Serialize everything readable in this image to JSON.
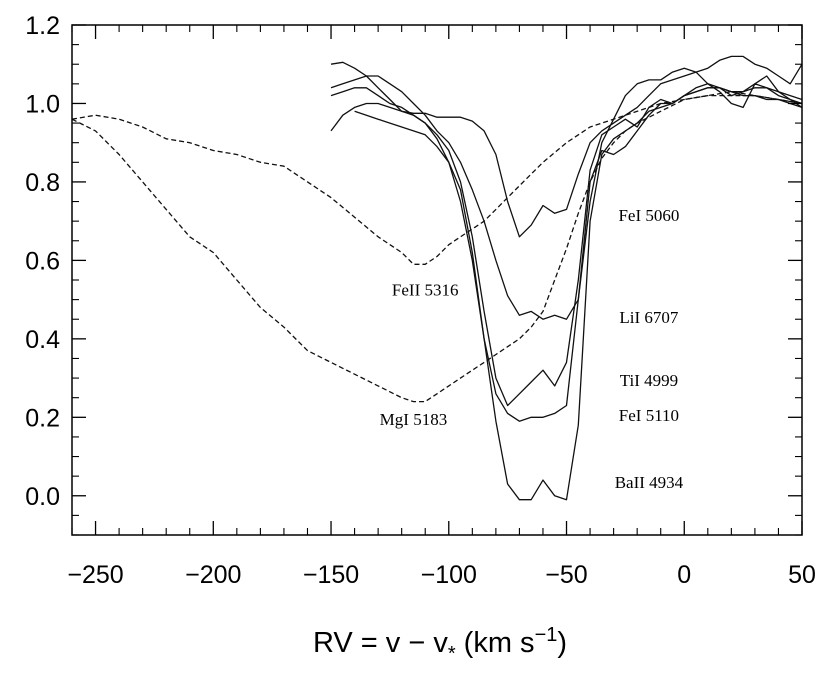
{
  "chart_data": {
    "type": "line",
    "title": "",
    "xlabel": {
      "base": "RV = v − v",
      "sub": "*",
      "units_open": " (km s",
      "sup": "−1",
      "units_close": ")"
    },
    "ylabel": "",
    "xlim": [
      -260,
      50
    ],
    "ylim": [
      -0.1,
      1.2
    ],
    "xticks": [
      -250,
      -200,
      -150,
      -100,
      -50,
      0,
      50
    ],
    "xtick_labels": [
      "−250",
      "−200",
      "−150",
      "−100",
      "−50",
      "0",
      "50"
    ],
    "yticks": [
      0.0,
      0.2,
      0.4,
      0.6,
      0.8,
      1.0,
      1.2
    ],
    "ytick_labels": [
      "0.0",
      "0.2",
      "0.4",
      "0.6",
      "0.8",
      "1.0",
      "1.2"
    ],
    "x_minor_step": 10,
    "y_minor_step": 0.05,
    "grid": false,
    "series": [
      {
        "name": "FeI 5060",
        "style": "solid",
        "label": {
          "text": "FeI 5060",
          "x": -15,
          "y": 0.7
        },
        "x": [
          -150,
          -145,
          -140,
          -135,
          -130,
          -125,
          -120,
          -115,
          -110,
          -105,
          -100,
          -95,
          -90,
          -85,
          -80,
          -75,
          -70,
          -65,
          -60,
          -55,
          -50,
          -45,
          -40,
          -35,
          -30,
          -25,
          -20,
          -15,
          -10,
          -5,
          0,
          5,
          10,
          15,
          20,
          25,
          30,
          35,
          40,
          45,
          50
        ],
        "values": [
          1.1,
          1.105,
          1.09,
          1.07,
          1.04,
          1.01,
          0.98,
          0.975,
          0.975,
          0.965,
          0.965,
          0.965,
          0.955,
          0.93,
          0.87,
          0.75,
          0.66,
          0.69,
          0.74,
          0.72,
          0.73,
          0.82,
          0.9,
          0.93,
          0.95,
          0.97,
          0.99,
          1.02,
          1.05,
          1.06,
          1.07,
          1.08,
          1.09,
          1.11,
          1.12,
          1.12,
          1.1,
          1.09,
          1.07,
          1.05,
          1.1
        ]
      },
      {
        "name": "LiI 6707",
        "style": "solid",
        "label": {
          "text": "LiI 6707",
          "x": -15,
          "y": 0.44
        },
        "x": [
          -150,
          -145,
          -140,
          -135,
          -130,
          -125,
          -120,
          -115,
          -110,
          -105,
          -100,
          -95,
          -90,
          -85,
          -80,
          -75,
          -70,
          -65,
          -60,
          -55,
          -50,
          -45,
          -40,
          -35,
          -30,
          -25,
          -20,
          -15,
          -10,
          -5,
          0,
          5,
          10,
          15,
          20,
          25,
          30,
          35,
          40,
          45,
          50
        ],
        "values": [
          1.04,
          1.05,
          1.06,
          1.07,
          1.07,
          1.05,
          1.03,
          1.0,
          0.97,
          0.93,
          0.9,
          0.85,
          0.78,
          0.7,
          0.6,
          0.51,
          0.46,
          0.47,
          0.45,
          0.46,
          0.45,
          0.5,
          0.75,
          0.9,
          0.96,
          1.02,
          1.05,
          1.06,
          1.06,
          1.08,
          1.09,
          1.08,
          1.05,
          1.03,
          1.0,
          0.99,
          1.05,
          1.07,
          1.03,
          1.01,
          0.99
        ]
      },
      {
        "name": "TiI 4999",
        "style": "solid",
        "label": {
          "text": "TiI 4999",
          "x": -15,
          "y": 0.28
        },
        "x": [
          -150,
          -145,
          -140,
          -135,
          -130,
          -125,
          -120,
          -115,
          -110,
          -105,
          -100,
          -95,
          -90,
          -85,
          -80,
          -75,
          -70,
          -65,
          -60,
          -55,
          -50,
          -45,
          -40,
          -35,
          -30,
          -25,
          -20,
          -15,
          -10,
          -5,
          0,
          5,
          10,
          15,
          20,
          25,
          30,
          35,
          40,
          45,
          50
        ],
        "values": [
          0.93,
          0.97,
          0.99,
          1.0,
          1.0,
          0.99,
          0.98,
          0.97,
          0.95,
          0.92,
          0.88,
          0.8,
          0.66,
          0.47,
          0.3,
          0.23,
          0.26,
          0.29,
          0.32,
          0.28,
          0.34,
          0.55,
          0.83,
          0.92,
          0.94,
          0.96,
          0.94,
          0.99,
          1.01,
          1.0,
          1.02,
          1.03,
          1.04,
          1.04,
          1.03,
          1.03,
          1.04,
          1.04,
          1.02,
          1.01,
          1.0
        ]
      },
      {
        "name": "FeI 5110",
        "style": "solid",
        "label": {
          "text": "FeI 5110",
          "x": -15,
          "y": 0.19
        },
        "x": [
          -150,
          -145,
          -140,
          -135,
          -130,
          -125,
          -120,
          -115,
          -110,
          -105,
          -100,
          -95,
          -90,
          -85,
          -80,
          -75,
          -70,
          -65,
          -60,
          -55,
          -50,
          -45,
          -40,
          -35,
          -30,
          -25,
          -20,
          -15,
          -10,
          -5,
          0,
          5,
          10,
          15,
          20,
          25,
          30,
          35,
          40,
          45,
          50
        ],
        "values": [
          1.02,
          1.03,
          1.04,
          1.04,
          1.02,
          1.0,
          0.99,
          0.97,
          0.95,
          0.91,
          0.85,
          0.75,
          0.6,
          0.4,
          0.26,
          0.21,
          0.19,
          0.2,
          0.2,
          0.21,
          0.23,
          0.5,
          0.8,
          0.88,
          0.87,
          0.89,
          0.93,
          0.97,
          1.0,
          1.0,
          1.02,
          1.04,
          1.05,
          1.04,
          1.02,
          1.03,
          1.05,
          1.04,
          1.03,
          1.02,
          1.01
        ]
      },
      {
        "name": "BaII 4934",
        "style": "solid",
        "label": {
          "text": "BaII 4934",
          "x": -15,
          "y": 0.02
        },
        "x": [
          -140,
          -135,
          -130,
          -125,
          -120,
          -115,
          -110,
          -105,
          -100,
          -95,
          -90,
          -85,
          -80,
          -75,
          -70,
          -65,
          -60,
          -55,
          -50,
          -45,
          -40,
          -35,
          -30,
          -25,
          -20,
          -15,
          -10,
          -5,
          0,
          5,
          10,
          15,
          20,
          25,
          30,
          35,
          40,
          45,
          50
        ],
        "values": [
          0.98,
          0.97,
          0.96,
          0.95,
          0.94,
          0.93,
          0.92,
          0.89,
          0.85,
          0.78,
          0.62,
          0.4,
          0.19,
          0.03,
          -0.01,
          -0.01,
          0.04,
          0.0,
          -0.01,
          0.18,
          0.7,
          0.87,
          0.91,
          0.93,
          0.95,
          0.98,
          0.99,
          1.0,
          1.02,
          1.03,
          1.04,
          1.04,
          1.03,
          1.02,
          1.02,
          1.01,
          1.01,
          1.0,
          0.99
        ]
      },
      {
        "name": "FeII 5316",
        "style": "dashed",
        "label": {
          "text": "FeII 5316",
          "x": -110,
          "y": 0.51
        },
        "x": [
          -260,
          -250,
          -240,
          -230,
          -220,
          -210,
          -200,
          -190,
          -180,
          -170,
          -160,
          -150,
          -140,
          -130,
          -120,
          -115,
          -110,
          -105,
          -100,
          -95,
          -90,
          -85,
          -80,
          -75,
          -70,
          -60,
          -50,
          -40,
          -30,
          -20,
          -10,
          0,
          10,
          20,
          30,
          40,
          50
        ],
        "values": [
          0.96,
          0.97,
          0.96,
          0.94,
          0.91,
          0.9,
          0.88,
          0.87,
          0.85,
          0.84,
          0.8,
          0.76,
          0.71,
          0.66,
          0.62,
          0.59,
          0.59,
          0.61,
          0.64,
          0.66,
          0.68,
          0.7,
          0.73,
          0.76,
          0.79,
          0.85,
          0.9,
          0.94,
          0.96,
          0.98,
          1.0,
          1.01,
          1.02,
          1.02,
          1.02,
          1.01,
          1.0
        ]
      },
      {
        "name": "MgI 5183",
        "style": "dashed",
        "label": {
          "text": "MgI 5183",
          "x": -115,
          "y": 0.18
        },
        "x": [
          -260,
          -250,
          -240,
          -230,
          -220,
          -210,
          -200,
          -190,
          -180,
          -170,
          -160,
          -150,
          -140,
          -130,
          -120,
          -115,
          -110,
          -105,
          -100,
          -95,
          -90,
          -85,
          -80,
          -75,
          -70,
          -65,
          -60,
          -55,
          -50,
          -45,
          -40,
          -35,
          -30,
          -25,
          -20,
          -10,
          0,
          10,
          20,
          30,
          40,
          50
        ],
        "values": [
          0.96,
          0.93,
          0.87,
          0.8,
          0.73,
          0.66,
          0.62,
          0.55,
          0.48,
          0.43,
          0.37,
          0.34,
          0.31,
          0.28,
          0.25,
          0.24,
          0.24,
          0.26,
          0.28,
          0.3,
          0.32,
          0.34,
          0.36,
          0.38,
          0.4,
          0.43,
          0.47,
          0.55,
          0.63,
          0.72,
          0.8,
          0.86,
          0.9,
          0.93,
          0.95,
          0.98,
          1.01,
          1.02,
          1.03,
          1.02,
          1.01,
          1.0
        ]
      }
    ]
  }
}
